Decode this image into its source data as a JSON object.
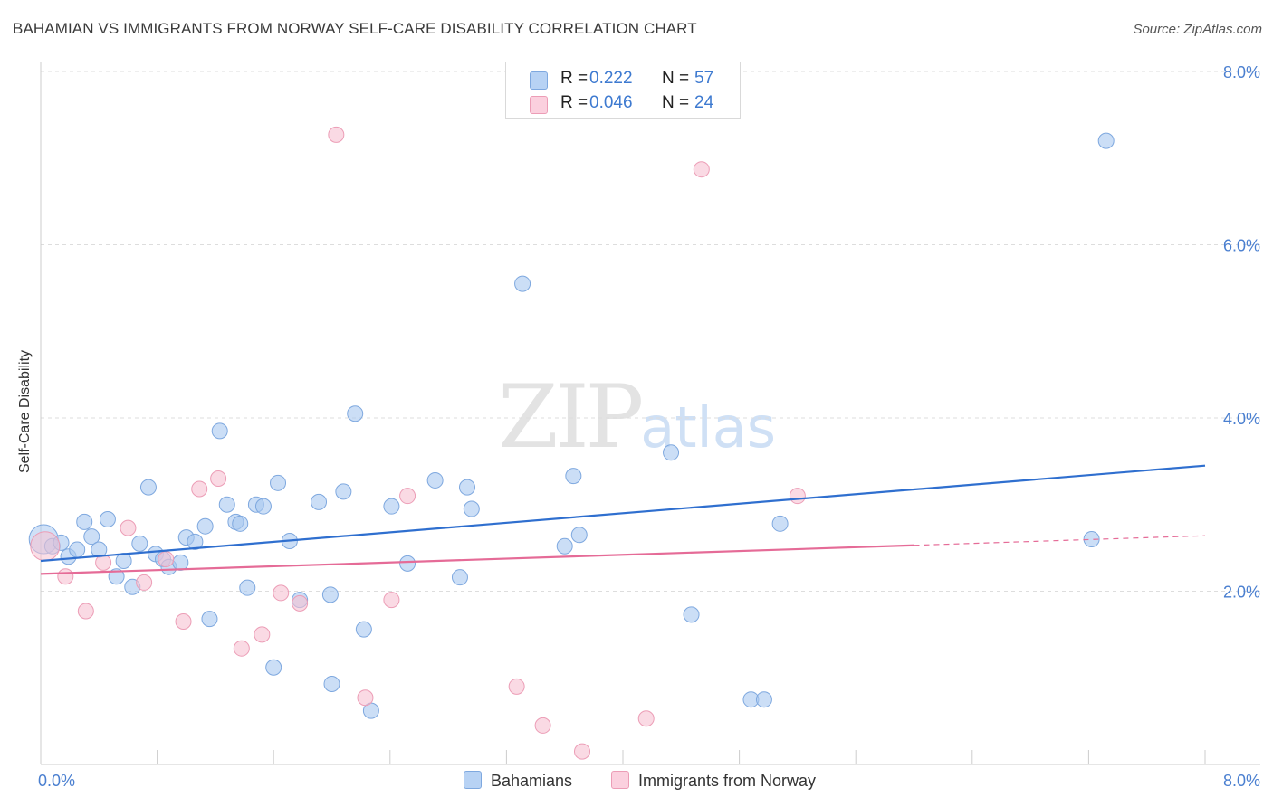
{
  "title": "BAHAMIAN VS IMMIGRANTS FROM NORWAY SELF-CARE DISABILITY CORRELATION CHART",
  "source": "Source: ZipAtlas.com",
  "watermark": {
    "zip": "ZIP",
    "atlas": "atlas"
  },
  "legend": {
    "rows": [
      {
        "r_label": "R =",
        "r_value": "0.222",
        "n_label": "N =",
        "n_value": "57"
      },
      {
        "r_label": "R =",
        "r_value": "0.046",
        "n_label": "N =",
        "n_value": "24"
      }
    ]
  },
  "bottom_legend": [
    "Bahamians",
    "Immigrants from Norway"
  ],
  "colors": {
    "blue_fill": "#a9c8f0",
    "blue_stroke": "#7ea8df",
    "blue_line": "#2f6fcf",
    "pink_fill": "#f7c2d2",
    "pink_stroke": "#ec9db6",
    "pink_line": "#e56b97",
    "axis_text": "#4a7fd0",
    "grid": "#dddddd"
  },
  "chart_data": {
    "type": "scatter",
    "title": "BAHAMIAN VS IMMIGRANTS FROM NORWAY SELF-CARE DISABILITY CORRELATION CHART",
    "xlabel": "",
    "ylabel": "Self-Care Disability",
    "xlim": [
      0,
      8.0
    ],
    "ylim": [
      0,
      8.0
    ],
    "x_tick_labels": [
      "0.0%",
      "8.0%"
    ],
    "y_ticks": [
      2.0,
      4.0,
      6.0,
      8.0
    ],
    "y_tick_labels": [
      "2.0%",
      "4.0%",
      "6.0%",
      "8.0%"
    ],
    "grid": true,
    "series": [
      {
        "name": "Bahamians",
        "color": "#a9c8f0",
        "R": 0.222,
        "N": 57,
        "trend": {
          "x": [
            0,
            8.0
          ],
          "y": [
            2.35,
            3.45
          ]
        },
        "points": [
          {
            "x": 0.02,
            "y": 2.6,
            "big": true
          },
          {
            "x": 0.08,
            "y": 2.52
          },
          {
            "x": 0.14,
            "y": 2.56
          },
          {
            "x": 0.19,
            "y": 2.4
          },
          {
            "x": 0.25,
            "y": 2.48
          },
          {
            "x": 0.3,
            "y": 2.8
          },
          {
            "x": 0.35,
            "y": 2.63
          },
          {
            "x": 0.4,
            "y": 2.48
          },
          {
            "x": 0.46,
            "y": 2.83
          },
          {
            "x": 0.52,
            "y": 2.17
          },
          {
            "x": 0.57,
            "y": 2.35
          },
          {
            "x": 0.63,
            "y": 2.05
          },
          {
            "x": 0.68,
            "y": 2.55
          },
          {
            "x": 0.74,
            "y": 3.2
          },
          {
            "x": 0.79,
            "y": 2.43
          },
          {
            "x": 0.84,
            "y": 2.37
          },
          {
            "x": 0.88,
            "y": 2.28
          },
          {
            "x": 0.96,
            "y": 2.33
          },
          {
            "x": 1.0,
            "y": 2.62
          },
          {
            "x": 1.06,
            "y": 2.57
          },
          {
            "x": 1.13,
            "y": 2.75
          },
          {
            "x": 1.16,
            "y": 1.68
          },
          {
            "x": 1.23,
            "y": 3.85
          },
          {
            "x": 1.28,
            "y": 3.0
          },
          {
            "x": 1.34,
            "y": 2.8
          },
          {
            "x": 1.37,
            "y": 2.78
          },
          {
            "x": 1.42,
            "y": 2.04
          },
          {
            "x": 1.48,
            "y": 3.0
          },
          {
            "x": 1.53,
            "y": 2.98
          },
          {
            "x": 1.6,
            "y": 1.12
          },
          {
            "x": 1.63,
            "y": 3.25
          },
          {
            "x": 1.71,
            "y": 2.58
          },
          {
            "x": 1.78,
            "y": 1.9
          },
          {
            "x": 1.91,
            "y": 3.03
          },
          {
            "x": 1.99,
            "y": 1.96
          },
          {
            "x": 2.0,
            "y": 0.93
          },
          {
            "x": 2.08,
            "y": 3.15
          },
          {
            "x": 2.16,
            "y": 4.05
          },
          {
            "x": 2.22,
            "y": 1.56
          },
          {
            "x": 2.27,
            "y": 0.62
          },
          {
            "x": 2.41,
            "y": 2.98
          },
          {
            "x": 2.52,
            "y": 2.32
          },
          {
            "x": 2.71,
            "y": 3.28
          },
          {
            "x": 2.88,
            "y": 2.16
          },
          {
            "x": 2.93,
            "y": 3.2
          },
          {
            "x": 2.96,
            "y": 2.95
          },
          {
            "x": 3.31,
            "y": 5.55
          },
          {
            "x": 3.6,
            "y": 2.52
          },
          {
            "x": 3.66,
            "y": 3.33
          },
          {
            "x": 3.7,
            "y": 2.65
          },
          {
            "x": 4.33,
            "y": 3.6
          },
          {
            "x": 4.47,
            "y": 1.73
          },
          {
            "x": 4.88,
            "y": 0.75
          },
          {
            "x": 4.97,
            "y": 0.75
          },
          {
            "x": 5.08,
            "y": 2.78
          },
          {
            "x": 7.22,
            "y": 2.6
          },
          {
            "x": 7.32,
            "y": 7.2
          }
        ]
      },
      {
        "name": "Immigrants from Norway",
        "color": "#f7c2d2",
        "R": 0.046,
        "N": 24,
        "trend": {
          "x": [
            0,
            6.0
          ],
          "y": [
            2.2,
            2.53
          ],
          "dashed_to": {
            "x": 8.0,
            "y": 2.64
          }
        },
        "points": [
          {
            "x": 0.03,
            "y": 2.52,
            "big": true
          },
          {
            "x": 0.17,
            "y": 2.17
          },
          {
            "x": 0.31,
            "y": 1.77
          },
          {
            "x": 0.43,
            "y": 2.33
          },
          {
            "x": 0.6,
            "y": 2.73
          },
          {
            "x": 0.71,
            "y": 2.1
          },
          {
            "x": 0.86,
            "y": 2.37
          },
          {
            "x": 0.98,
            "y": 1.65
          },
          {
            "x": 1.09,
            "y": 3.18
          },
          {
            "x": 1.22,
            "y": 3.3
          },
          {
            "x": 1.38,
            "y": 1.34
          },
          {
            "x": 1.52,
            "y": 1.5
          },
          {
            "x": 1.65,
            "y": 1.98
          },
          {
            "x": 1.78,
            "y": 1.86
          },
          {
            "x": 2.03,
            "y": 7.27
          },
          {
            "x": 2.23,
            "y": 0.77
          },
          {
            "x": 2.41,
            "y": 1.9
          },
          {
            "x": 2.52,
            "y": 3.1
          },
          {
            "x": 3.27,
            "y": 0.9
          },
          {
            "x": 3.45,
            "y": 0.45
          },
          {
            "x": 3.72,
            "y": 0.15
          },
          {
            "x": 4.16,
            "y": 0.53
          },
          {
            "x": 4.54,
            "y": 6.87
          },
          {
            "x": 5.2,
            "y": 3.1
          }
        ]
      }
    ]
  }
}
